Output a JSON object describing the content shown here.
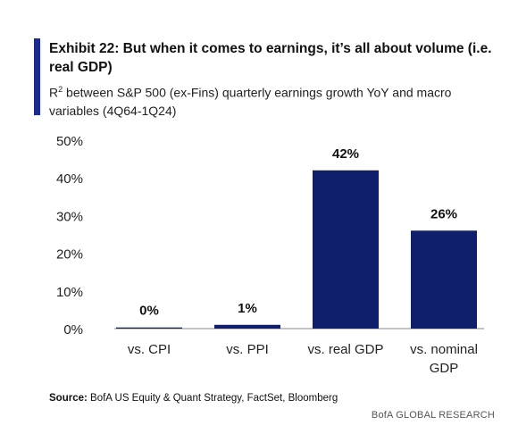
{
  "header": {
    "title": "Exhibit 22: But when it comes to earnings, it’s all about volume (i.e. real GDP)",
    "subtitle_r": "R",
    "subtitle_sup": "2",
    "subtitle_rest": " between S&P 500 (ex-Fins) quarterly earnings growth YoY and macro variables (4Q64-1Q24)"
  },
  "chart_data": {
    "type": "bar",
    "categories": [
      [
        "vs. CPI"
      ],
      [
        "vs. PPI"
      ],
      [
        "vs. real GDP"
      ],
      [
        "vs. nominal",
        "GDP"
      ]
    ],
    "values": [
      0.3,
      1,
      42,
      26
    ],
    "data_labels": [
      "0%",
      "1%",
      "42%",
      "26%"
    ],
    "ylim": [
      0,
      50
    ],
    "yticks": [
      0,
      10,
      20,
      30,
      40,
      50
    ],
    "ytick_labels": [
      "0%",
      "10%",
      "20%",
      "30%",
      "40%",
      "50%"
    ],
    "bar_color": "#0f1f6b",
    "grid": false,
    "legend": "none"
  },
  "footer": {
    "source_label": "Source:",
    "source_text": " BofA US Equity & Quant Strategy, FactSet, Bloomberg",
    "brand": "BofA GLOBAL RESEARCH"
  }
}
